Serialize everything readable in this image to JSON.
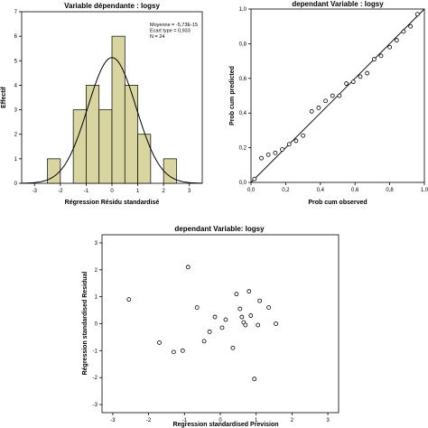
{
  "chart_data": [
    {
      "type": "bar",
      "title": "Variable dépendante : logsy",
      "xlabel": "Régression Résidu standardisé",
      "ylabel": "Effectif",
      "stats": [
        "Moyenne = -5,73E-15",
        "Ecart type = 0,933",
        "N = 24"
      ],
      "bins": [
        {
          "x0": -2.5,
          "x1": -2.0,
          "count": 1
        },
        {
          "x0": -1.5,
          "x1": -1.0,
          "count": 3
        },
        {
          "x0": -1.0,
          "x1": -0.5,
          "count": 4
        },
        {
          "x0": -0.5,
          "x1": 0.0,
          "count": 3
        },
        {
          "x0": 0.0,
          "x1": 0.5,
          "count": 6
        },
        {
          "x0": 0.5,
          "x1": 1.0,
          "count": 4
        },
        {
          "x0": 1.0,
          "x1": 1.5,
          "count": 2
        },
        {
          "x0": 2.0,
          "x1": 2.5,
          "count": 1
        }
      ],
      "normal_curve": {
        "mean": 0,
        "sd": 0.933,
        "n": 24,
        "bin_width": 0.5
      },
      "xlim": [
        -3.5,
        3.5
      ],
      "ylim": [
        0,
        7
      ],
      "x_ticks": [
        "-3",
        "-2",
        "-1",
        "0",
        "1",
        "2",
        "3"
      ],
      "y_ticks": [
        "0",
        "1",
        "2",
        "3",
        "4",
        "5",
        "6",
        "7"
      ]
    },
    {
      "type": "scatter",
      "title": "dependant Variable : logsy",
      "xlabel": "Prob cum observed",
      "ylabel": "Prob cum predicted",
      "xlim": [
        0,
        1
      ],
      "ylim": [
        0,
        1
      ],
      "x_ticks": [
        "0,0",
        "0,2",
        "0,4",
        "0,6",
        "0,8",
        "1,0"
      ],
      "y_ticks": [
        "0,0",
        "0,2",
        "0,4",
        "0,6",
        "0,8",
        "1,0"
      ],
      "x": [
        0.02,
        0.06,
        0.1,
        0.14,
        0.18,
        0.22,
        0.26,
        0.3,
        0.35,
        0.39,
        0.43,
        0.47,
        0.51,
        0.55,
        0.59,
        0.63,
        0.67,
        0.71,
        0.75,
        0.8,
        0.84,
        0.88,
        0.92,
        0.96
      ],
      "y": [
        0.02,
        0.14,
        0.16,
        0.17,
        0.19,
        0.22,
        0.24,
        0.27,
        0.41,
        0.43,
        0.47,
        0.5,
        0.5,
        0.57,
        0.58,
        0.61,
        0.63,
        0.71,
        0.73,
        0.78,
        0.82,
        0.87,
        0.9,
        0.97
      ]
    },
    {
      "type": "scatter",
      "title": "dependant Variable: logsy",
      "xlabel": "Regression standardised Prevision",
      "ylabel": "Régression standardised Residual",
      "xlim": [
        -3.3,
        3.3
      ],
      "ylim": [
        -3.3,
        3.3
      ],
      "x_ticks": [
        "-3",
        "-2",
        "-1",
        "0",
        "1",
        "2",
        "3"
      ],
      "y_ticks": [
        "-3",
        "-2",
        "-1",
        "0",
        "1",
        "2",
        "3"
      ],
      "x": [
        -2.55,
        -1.7,
        -1.3,
        -1.05,
        -0.9,
        -0.65,
        -0.45,
        -0.3,
        -0.15,
        0.05,
        0.15,
        0.35,
        0.45,
        0.55,
        0.6,
        0.65,
        0.7,
        0.8,
        0.85,
        0.95,
        1.05,
        1.1,
        1.35,
        1.55
      ],
      "y": [
        0.9,
        -0.7,
        -1.05,
        -1.0,
        2.1,
        0.6,
        -0.65,
        -0.3,
        0.25,
        -0.15,
        0.15,
        -0.9,
        1.1,
        0.55,
        0.25,
        0.05,
        -0.05,
        1.2,
        0.3,
        -2.05,
        -0.05,
        0.85,
        0.6,
        0.0
      ]
    }
  ]
}
